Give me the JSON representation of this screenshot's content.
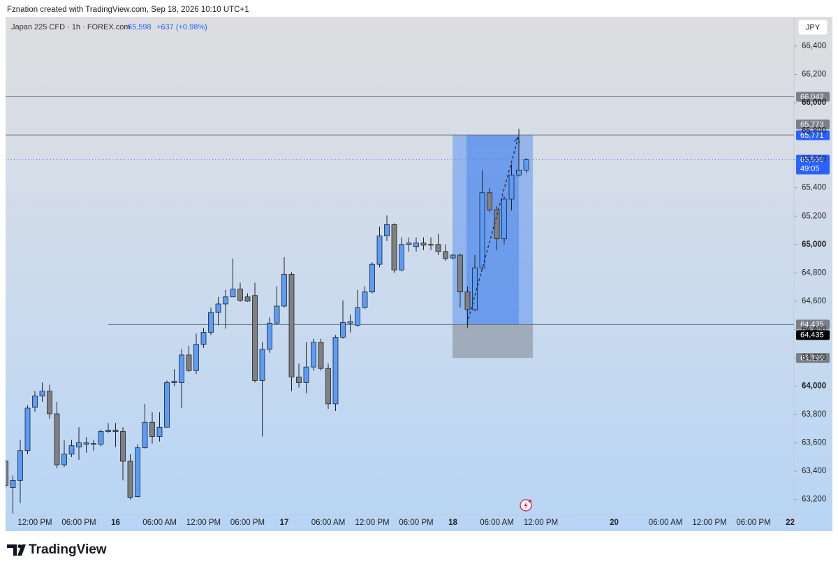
{
  "header": {
    "attribution": "Fznation created with TradingView.com, Sep 18, 2026 10:10 UTC+1"
  },
  "legend": {
    "symbol": "Japan 225 CFD · 1h · FOREX.com",
    "last": "65,598",
    "change": "+637 (+0.98%)"
  },
  "currency_button": "JPY",
  "countdown": "49:05",
  "footer": {
    "brand": "TradingView"
  },
  "chart_data": {
    "type": "candlestick",
    "up_color": "#5b9cf6",
    "down_color": "#808080",
    "categories": [
      null,
      null,
      null,
      null,
      "12:00 PM",
      null,
      null,
      null,
      null,
      null,
      "06:00 PM",
      null,
      null,
      null,
      null,
      "16",
      null,
      null,
      null,
      null,
      null,
      "06:00 AM",
      null,
      null,
      null,
      null,
      null,
      "12:00 PM",
      null,
      null,
      null,
      null,
      null,
      "06:00 PM",
      null,
      null,
      null,
      null,
      "17",
      null,
      null,
      null,
      null,
      null,
      "06:00 AM",
      null,
      null,
      null,
      null,
      null,
      "12:00 PM",
      null,
      null,
      null,
      null,
      null,
      "06:00 PM",
      null,
      null,
      null,
      null,
      "18",
      null,
      null,
      null,
      null,
      null,
      "06:00 AM",
      null,
      null,
      null,
      null,
      null,
      "12:00 PM",
      null,
      null,
      null,
      null,
      null,
      null,
      null,
      null,
      null,
      "20",
      null,
      null,
      null,
      null,
      null,
      null,
      "06:00 AM",
      null,
      null,
      null,
      null,
      null,
      "12:00 PM",
      null,
      null,
      null,
      null,
      null,
      "06:00 PM",
      null,
      null,
      null,
      null,
      "22"
    ],
    "open": [
      63470,
      63285,
      63335,
      63545,
      63850,
      63930,
      63965,
      63805,
      63445,
      63520,
      63570,
      63600,
      63590,
      63590,
      63680,
      63690,
      63680,
      63470,
      63220,
      63565,
      63745,
      63645,
      63710,
      64025,
      64025,
      64220,
      64110,
      64295,
      64380,
      64520,
      64580,
      64630,
      64685,
      64630,
      64640,
      64040,
      64260,
      64445,
      64565,
      64790,
      64065,
      64025,
      64135,
      64310,
      64125,
      63875,
      64345,
      64445,
      64430,
      64555,
      64665,
      64860,
      65060,
      65140,
      64820,
      65000,
      64985,
      65010,
      64995,
      65000,
      64950,
      64905,
      64925,
      64665,
      64540,
      64835,
      65365,
      65245,
      65040,
      65320,
      65490,
      65525,
      null,
      null,
      null,
      null,
      null,
      null,
      null,
      null,
      null,
      null,
      null,
      null,
      null,
      null,
      null,
      null,
      null,
      null,
      null,
      null,
      null,
      null,
      null,
      null,
      null,
      null,
      null,
      null,
      null,
      null,
      null,
      null,
      null,
      null,
      null,
      null
    ],
    "high": [
      63480,
      63370,
      63620,
      63865,
      63965,
      64025,
      64010,
      63890,
      63620,
      63620,
      63710,
      63640,
      63620,
      63695,
      63740,
      63740,
      63710,
      63520,
      63590,
      63875,
      63815,
      63815,
      64040,
      64120,
      64260,
      64285,
      64370,
      64410,
      64555,
      64630,
      64680,
      64900,
      64730,
      64655,
      64730,
      64310,
      64485,
      64705,
      64910,
      64805,
      64160,
      64310,
      64335,
      64335,
      64160,
      64360,
      64605,
      64505,
      64680,
      64705,
      64875,
      65125,
      65205,
      65150,
      65050,
      65050,
      65050,
      65050,
      65050,
      65075,
      65000,
      64935,
      64935,
      64705,
      64925,
      65525,
      65400,
      65270,
      65340,
      65565,
      65815,
      65610,
      null,
      null,
      null,
      null,
      null,
      null,
      null,
      null,
      null,
      null,
      null,
      null,
      null,
      null,
      null,
      null,
      null,
      null,
      null,
      null,
      null,
      null,
      null,
      null,
      null,
      null,
      null,
      null,
      null,
      null,
      null,
      null,
      null,
      null,
      null,
      null
    ],
    "low": [
      63280,
      63100,
      63175,
      63520,
      63820,
      63890,
      63770,
      63420,
      63430,
      63500,
      63480,
      63530,
      63545,
      63575,
      63670,
      63570,
      63335,
      63200,
      63215,
      63560,
      63595,
      63610,
      63710,
      64000,
      63845,
      64100,
      64085,
      64270,
      64360,
      64430,
      64405,
      64630,
      64595,
      64595,
      64025,
      63645,
      64235,
      64435,
      64555,
      63965,
      63990,
      63950,
      64110,
      64110,
      63840,
      63825,
      64335,
      64380,
      64420,
      64545,
      64655,
      64840,
      65025,
      64800,
      64810,
      64950,
      64950,
      64960,
      64960,
      64925,
      64885,
      64895,
      64555,
      64410,
      64530,
      64825,
      65230,
      64960,
      65000,
      65240,
      65480,
      65505,
      null,
      null,
      null,
      null,
      null,
      null,
      null,
      null,
      null,
      null,
      null,
      null,
      null,
      null,
      null,
      null,
      null,
      null,
      null,
      null,
      null,
      null,
      null,
      null,
      null,
      null,
      null,
      null,
      null,
      null,
      null,
      null,
      null,
      null,
      null,
      null
    ],
    "close": [
      63300,
      63335,
      63545,
      63845,
      63930,
      63965,
      63805,
      63445,
      63520,
      63580,
      63600,
      63590,
      63595,
      63680,
      63690,
      63680,
      63470,
      63215,
      63565,
      63745,
      63645,
      63710,
      64025,
      64035,
      64220,
      64110,
      64295,
      64380,
      64520,
      64580,
      64630,
      64685,
      64605,
      64600,
      64040,
      64260,
      64445,
      64565,
      64790,
      64065,
      64025,
      64135,
      64310,
      64125,
      63875,
      64345,
      64450,
      64455,
      64555,
      64665,
      64860,
      65060,
      65140,
      64820,
      65000,
      65010,
      65010,
      64995,
      65000,
      64950,
      64900,
      64925,
      64665,
      64540,
      64835,
      65365,
      65245,
      65040,
      65320,
      65490,
      65525,
      65598,
      null,
      null,
      null,
      null,
      null,
      null,
      null,
      null,
      null,
      null,
      null,
      null,
      null,
      null,
      null,
      null,
      null,
      null,
      null,
      null,
      null,
      null,
      null,
      null,
      null,
      null,
      null,
      null,
      null,
      null,
      null,
      null,
      null,
      null,
      null,
      null
    ],
    "ylim": [
      63090,
      66607
    ],
    "yticks": [
      {
        "value": 63200,
        "label": "63,200"
      },
      {
        "value": 63400,
        "label": "63,400"
      },
      {
        "value": 63600,
        "label": "63,600"
      },
      {
        "value": 63800,
        "label": "63,800"
      },
      {
        "value": 64000,
        "label": "64,000"
      },
      {
        "value": 64200,
        "label": "64,200"
      },
      {
        "value": 64400,
        "label": "64,400"
      },
      {
        "value": 64600,
        "label": "64,600"
      },
      {
        "value": 64800,
        "label": "64,800"
      },
      {
        "value": 65000,
        "label": "65,000"
      },
      {
        "value": 65200,
        "label": "65,200"
      },
      {
        "value": 65400,
        "label": "65,400"
      },
      {
        "value": 65600,
        "label": "65,600"
      },
      {
        "value": 65800,
        "label": "65,800"
      },
      {
        "value": 66000,
        "label": "66,000"
      },
      {
        "value": 66200,
        "label": "66,200"
      },
      {
        "value": 66400,
        "label": "66,400"
      }
    ],
    "levels": [
      {
        "value": 66042,
        "label": "66,042",
        "style": "line"
      },
      {
        "value": 65773,
        "label": "65,773",
        "style": "line"
      },
      {
        "value": 65771,
        "label": "65,771",
        "style": "target"
      },
      {
        "value": 65598,
        "label": "65,598",
        "style": "last"
      },
      {
        "value": 64435,
        "label": "64,435",
        "style": "line"
      },
      {
        "value": 64435,
        "label": "64,435",
        "style": "entry"
      },
      {
        "value": 64199,
        "label": "64,199",
        "style": "stop"
      }
    ]
  }
}
